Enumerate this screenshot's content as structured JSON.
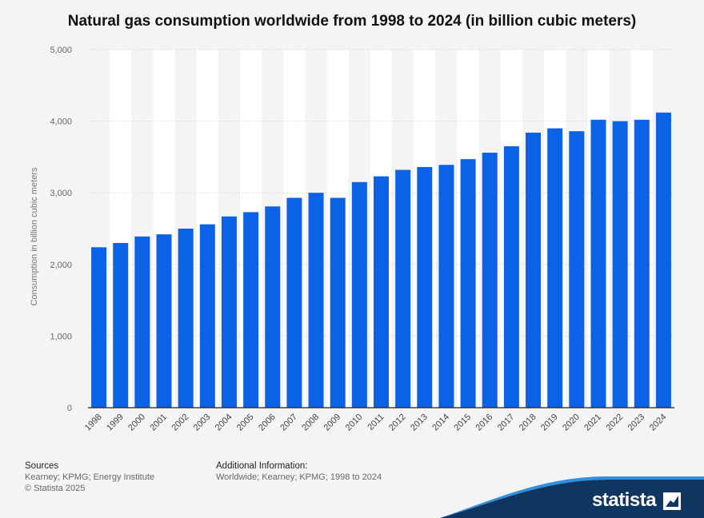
{
  "title": "Natural gas consumption worldwide from 1998 to 2024 (in billion cubic meters)",
  "colors": {
    "bar": "#0b62e6",
    "background": "#f4f4f4",
    "brand": "#0f3660",
    "stripe": "#ffffff"
  },
  "chart_data": {
    "type": "bar",
    "categories": [
      "1998",
      "1999",
      "2000",
      "2001",
      "2002",
      "2003",
      "2004",
      "2005",
      "2006",
      "2007",
      "2008",
      "2009",
      "2010",
      "2011",
      "2012",
      "2013",
      "2014",
      "2015",
      "2016",
      "2017",
      "2018",
      "2019",
      "2020",
      "2021",
      "2022",
      "2023",
      "2024"
    ],
    "values": [
      2240,
      2300,
      2390,
      2420,
      2500,
      2560,
      2670,
      2730,
      2810,
      2930,
      3000,
      2930,
      3150,
      3230,
      3320,
      3360,
      3390,
      3470,
      3560,
      3650,
      3840,
      3900,
      3860,
      4020,
      4000,
      4020,
      4120
    ],
    "ylabel": "Consumption in billion cubic meters",
    "xlabel": "",
    "ylim": [
      0,
      5000
    ],
    "yticks": [
      "0",
      "1,000",
      "2,000",
      "3,000",
      "4,000",
      "5,000"
    ],
    "ytick_values": [
      0,
      1000,
      2000,
      3000,
      4000,
      5000
    ],
    "grid": true
  },
  "footer": {
    "sources_heading": "Sources",
    "sources_lines": [
      "Kearney; KPMG; Energy Institute",
      "© Statista 2025"
    ],
    "additional_heading": "Additional Information:",
    "additional_text": "Worldwide; Kearney; KPMG; 1998 to 2024"
  },
  "brand": {
    "logo_text": "statista"
  }
}
